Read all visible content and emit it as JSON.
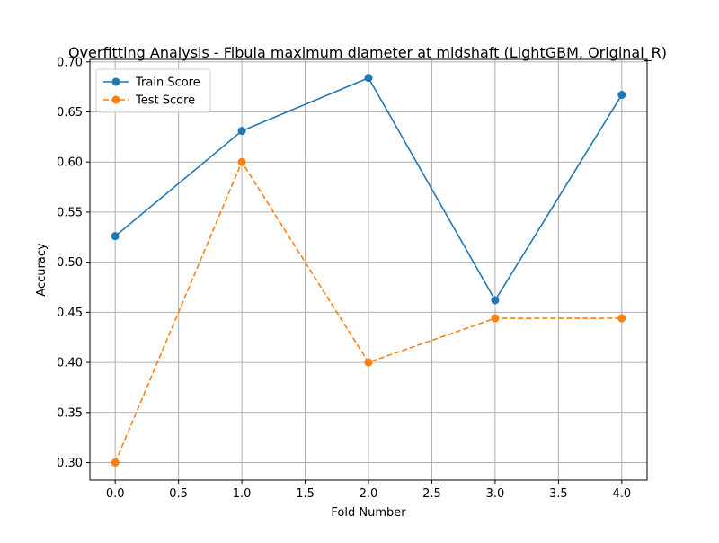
{
  "chart_data": {
    "type": "line",
    "title": "Overfitting Analysis - Fibula maximum diameter at midshaft (LightGBM, Original_R)",
    "xlabel": "Fold Number",
    "ylabel": "Accuracy",
    "xlim": [
      -0.2,
      4.2
    ],
    "ylim": [
      0.2825,
      0.7025
    ],
    "x_ticks": [
      0.0,
      0.5,
      1.0,
      1.5,
      2.0,
      2.5,
      3.0,
      3.5,
      4.0
    ],
    "x_tick_labels": [
      "0.0",
      "0.5",
      "1.0",
      "1.5",
      "2.0",
      "2.5",
      "3.0",
      "3.5",
      "4.0"
    ],
    "y_ticks": [
      0.3,
      0.35,
      0.4,
      0.45,
      0.5,
      0.55,
      0.6,
      0.65,
      0.7
    ],
    "y_tick_labels": [
      "0.30",
      "0.35",
      "0.40",
      "0.45",
      "0.50",
      "0.55",
      "0.60",
      "0.65",
      "0.70"
    ],
    "grid": true,
    "legend_position": "upper-left",
    "x": [
      0,
      1,
      2,
      3,
      4
    ],
    "series": [
      {
        "name": "Train Score",
        "values": [
          0.526,
          0.631,
          0.684,
          0.462,
          0.667
        ],
        "color": "#1f77b4",
        "line_style": "solid",
        "marker": "circle"
      },
      {
        "name": "Test Score",
        "values": [
          0.3,
          0.6,
          0.4,
          0.444,
          0.444
        ],
        "color": "#ff7f0e",
        "line_style": "dashed",
        "marker": "circle"
      }
    ]
  }
}
